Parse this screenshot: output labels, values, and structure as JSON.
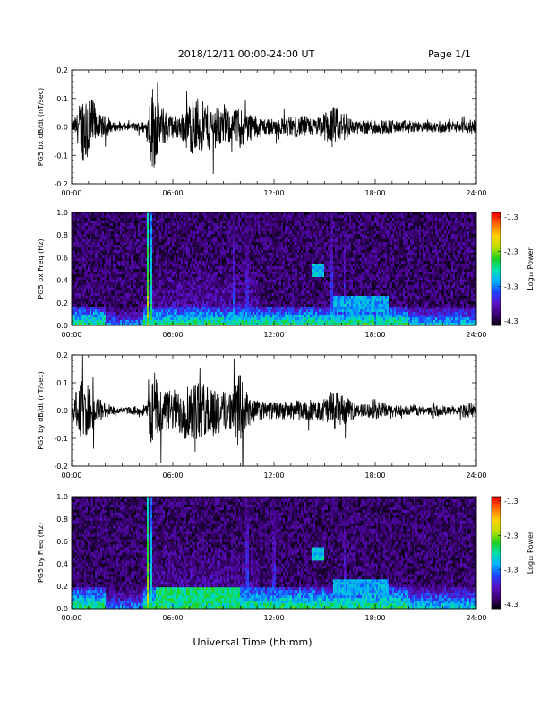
{
  "header": {
    "title": "2018/12/11  00:00-24:00 UT",
    "page": "Page 1/1"
  },
  "xaxis": {
    "title": "Universal Time (hh:mm)",
    "ticks": [
      "00:00",
      "06:00",
      "12:00",
      "18:00",
      "24:00"
    ],
    "range_hours": [
      0,
      24
    ]
  },
  "colorbar": {
    "label": "Log₁₀ Power",
    "ticks": [
      "-1.3",
      "-2.3",
      "-3.3",
      "-4.3"
    ],
    "range": [
      -4.3,
      -1.3
    ],
    "palette": [
      "#000000",
      "#3a0070",
      "#5a10c0",
      "#2040ff",
      "#00b0ff",
      "#00e0b0",
      "#20d020",
      "#c0e000",
      "#ffd000",
      "#ff7000",
      "#ff0000"
    ]
  },
  "chart_data": [
    {
      "type": "line",
      "panel": "bx-waveform",
      "ylabel": "PG5 bx dB/dt (nT/sec)",
      "ylim": [
        -0.2,
        0.2
      ],
      "yticks": [
        "0.2",
        "0.1",
        "0.0",
        "-0.1",
        "-0.2"
      ],
      "xlim": [
        0,
        24
      ],
      "x_unit": "hours UT",
      "envelope": {
        "x": [
          0,
          0.3,
          0.6,
          1.0,
          1.5,
          2.0,
          2.5,
          3.0,
          3.5,
          4.0,
          4.5,
          4.7,
          4.9,
          5.2,
          5.6,
          6.0,
          6.5,
          7.0,
          7.5,
          8.0,
          8.5,
          9.0,
          9.5,
          10.0,
          10.5,
          11.0,
          11.5,
          12.0,
          12.5,
          13.0,
          13.5,
          14.0,
          14.5,
          15.0,
          15.5,
          16.0,
          16.5,
          17.0,
          17.5,
          18.0,
          18.5,
          19.0,
          19.5,
          20.0,
          20.5,
          21.0,
          21.5,
          22.0,
          22.5,
          23.0,
          23.5,
          24.0
        ],
        "amplitude": [
          0.02,
          0.06,
          0.15,
          0.2,
          0.06,
          0.05,
          0.02,
          0.015,
          0.015,
          0.02,
          0.03,
          0.2,
          0.2,
          0.1,
          0.08,
          0.05,
          0.06,
          0.12,
          0.14,
          0.1,
          0.1,
          0.09,
          0.07,
          0.1,
          0.07,
          0.05,
          0.045,
          0.04,
          0.04,
          0.05,
          0.05,
          0.05,
          0.04,
          0.07,
          0.1,
          0.07,
          0.05,
          0.03,
          0.03,
          0.04,
          0.035,
          0.03,
          0.025,
          0.03,
          0.025,
          0.025,
          0.025,
          0.03,
          0.02,
          0.025,
          0.03,
          0.03
        ]
      }
    },
    {
      "type": "heatmap",
      "panel": "bx-spectrogram",
      "ylabel": "PG5 bx Freq (Hz)",
      "ylim": [
        0.0,
        1.0
      ],
      "yticks": [
        "1.0",
        "0.8",
        "0.6",
        "0.4",
        "0.2",
        "0.0"
      ],
      "xlim": [
        0,
        24
      ],
      "value_label": "Log10 Power",
      "vlim": [
        -4.3,
        -1.3
      ],
      "features": [
        {
          "kind": "low-frequency band",
          "t_range": [
            0,
            24
          ],
          "f_max": 0.1,
          "level": -2.4
        },
        {
          "kind": "vertical streak",
          "t": 4.5,
          "level": -2.2
        },
        {
          "kind": "vertical streak",
          "t": 4.75,
          "level": -2.6
        },
        {
          "kind": "vertical streak",
          "t": 9.6,
          "level": -3.3
        },
        {
          "kind": "vertical streak",
          "t": 10.4,
          "level": -3.4
        },
        {
          "kind": "vertical streak",
          "t": 15.4,
          "level": -3.3
        },
        {
          "kind": "vertical streak",
          "t": 16.2,
          "level": -3.4
        },
        {
          "kind": "patch",
          "t_range": [
            14.2,
            15.0
          ],
          "f_range": [
            0.42,
            0.55
          ],
          "level": -3.0
        },
        {
          "kind": "patch",
          "t_range": [
            15.5,
            18.8
          ],
          "f_range": [
            0.12,
            0.25
          ],
          "level": -3.1
        }
      ]
    },
    {
      "type": "line",
      "panel": "by-waveform",
      "ylabel": "PG5 by dB/dt (nT/sec)",
      "ylim": [
        -0.2,
        0.2
      ],
      "yticks": [
        "0.2",
        "0.1",
        "0.0",
        "-0.1",
        "-0.2"
      ],
      "xlim": [
        0,
        24
      ],
      "x_unit": "hours UT",
      "envelope": {
        "x": [
          0,
          0.3,
          0.6,
          1.0,
          1.5,
          2.0,
          2.5,
          3.0,
          3.5,
          4.0,
          4.5,
          4.7,
          4.9,
          5.2,
          5.6,
          6.0,
          6.5,
          7.0,
          7.5,
          8.0,
          8.5,
          9.0,
          9.5,
          10.0,
          10.5,
          11.0,
          11.5,
          12.0,
          12.5,
          13.0,
          13.5,
          14.0,
          14.5,
          15.0,
          15.5,
          16.0,
          16.5,
          17.0,
          17.5,
          18.0,
          18.5,
          19.0,
          19.5,
          20.0,
          20.5,
          21.0,
          21.5,
          22.0,
          22.5,
          23.0,
          23.5,
          24.0
        ],
        "amplitude": [
          0.03,
          0.1,
          0.15,
          0.12,
          0.06,
          0.04,
          0.02,
          0.015,
          0.015,
          0.02,
          0.03,
          0.2,
          0.2,
          0.12,
          0.1,
          0.1,
          0.12,
          0.15,
          0.15,
          0.12,
          0.13,
          0.1,
          0.09,
          0.2,
          0.07,
          0.05,
          0.045,
          0.04,
          0.04,
          0.04,
          0.05,
          0.05,
          0.04,
          0.06,
          0.1,
          0.08,
          0.05,
          0.03,
          0.03,
          0.04,
          0.035,
          0.03,
          0.025,
          0.025,
          0.025,
          0.02,
          0.025,
          0.025,
          0.02,
          0.025,
          0.04,
          0.03
        ]
      }
    },
    {
      "type": "heatmap",
      "panel": "by-spectrogram",
      "ylabel": "PG5 by Freq (Hz)",
      "ylim": [
        0.0,
        1.0
      ],
      "yticks": [
        "1.0",
        "0.8",
        "0.6",
        "0.4",
        "0.2",
        "0.0"
      ],
      "xlim": [
        0,
        24
      ],
      "value_label": "Log10 Power",
      "vlim": [
        -4.3,
        -1.3
      ],
      "features": [
        {
          "kind": "low-frequency band",
          "t_range": [
            0,
            24
          ],
          "f_max": 0.12,
          "level": -2.4
        },
        {
          "kind": "vertical streak",
          "t": 4.5,
          "level": -2.2
        },
        {
          "kind": "vertical streak",
          "t": 4.75,
          "level": -2.7
        },
        {
          "kind": "vertical streak",
          "t": 10.4,
          "level": -3.3
        },
        {
          "kind": "vertical streak",
          "t": 12.0,
          "level": -3.4
        },
        {
          "kind": "vertical streak",
          "t": 16.2,
          "level": -3.4
        },
        {
          "kind": "patch",
          "t_range": [
            14.2,
            15.0
          ],
          "f_range": [
            0.42,
            0.55
          ],
          "level": -3.0
        },
        {
          "kind": "patch",
          "t_range": [
            15.5,
            18.8
          ],
          "f_range": [
            0.12,
            0.25
          ],
          "level": -3.1
        },
        {
          "kind": "patch",
          "t_range": [
            5.0,
            10.0
          ],
          "f_range": [
            0.05,
            0.2
          ],
          "level": -2.7
        }
      ]
    }
  ]
}
